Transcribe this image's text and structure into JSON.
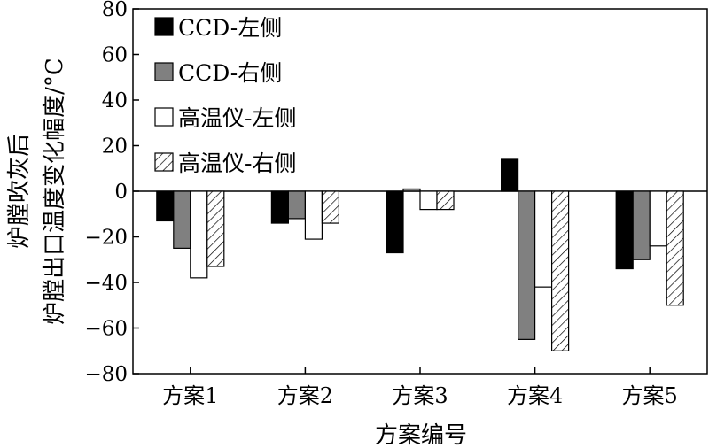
{
  "chart_data": {
    "type": "bar",
    "title": "",
    "xlabel": "方案编号",
    "ylabel": [
      "炉膛吹灰后",
      "炉膛出口温度变化幅度/°C"
    ],
    "categories": [
      "方案1",
      "方案2",
      "方案3",
      "方案4",
      "方案5"
    ],
    "ylim": [
      -80,
      80
    ],
    "yticks": [
      -80,
      -60,
      -40,
      -20,
      0,
      20,
      40,
      60,
      80
    ],
    "yticklabels": [
      "−80",
      "−60",
      "−40",
      "−20",
      "0",
      "20",
      "40",
      "60",
      "80"
    ],
    "legend_position": "top-left",
    "grid": false,
    "series": [
      {
        "name": "CCD-左侧",
        "style": "solid-black",
        "values": [
          -13,
          -14,
          -27,
          14,
          -34
        ]
      },
      {
        "name": "CCD-右侧",
        "style": "solid-gray",
        "values": [
          -25,
          -12,
          1,
          -65,
          -30
        ]
      },
      {
        "name": "高温仪-左侧",
        "style": "white",
        "values": [
          -38,
          -21,
          -8,
          -42,
          -24
        ]
      },
      {
        "name": "高温仪-右侧",
        "style": "hatched",
        "values": [
          -33,
          -14,
          -8,
          -70,
          -50
        ]
      }
    ],
    "colors": {
      "solid-black": "#000000",
      "solid-gray": "#808080",
      "white": "#ffffff",
      "hatched": "#ffffff"
    }
  }
}
